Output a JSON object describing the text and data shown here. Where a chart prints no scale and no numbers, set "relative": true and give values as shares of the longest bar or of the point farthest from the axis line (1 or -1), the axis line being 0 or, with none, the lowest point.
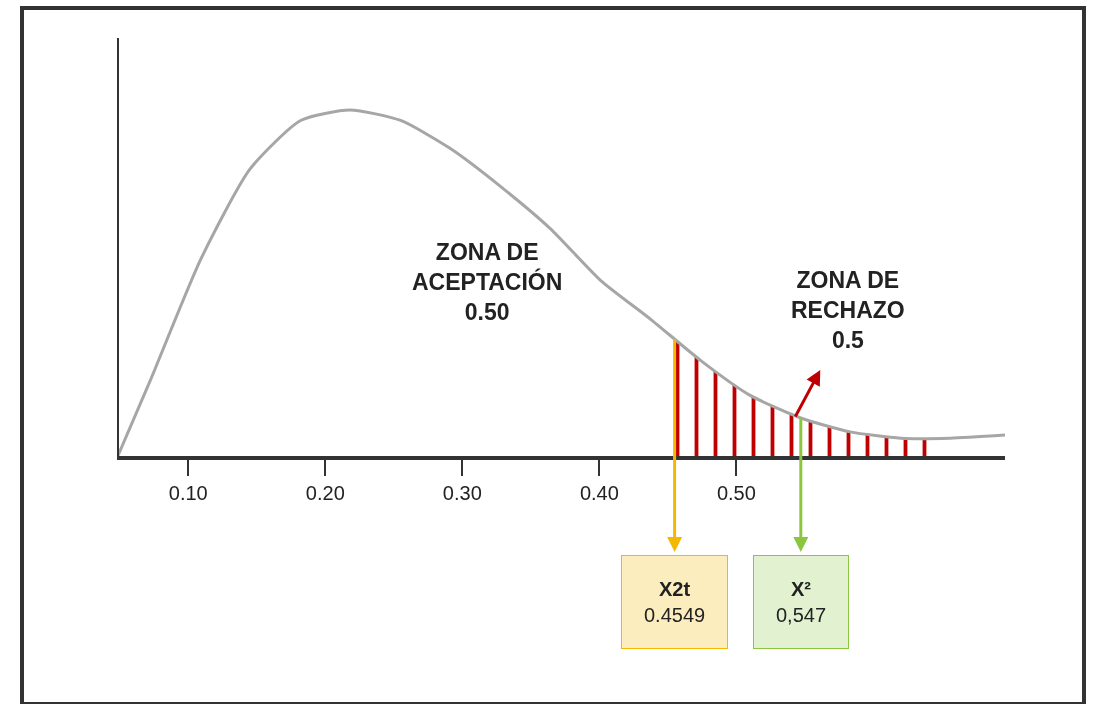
{
  "chart_data": {
    "type": "line",
    "relative": true,
    "x": [
      0.048,
      0.072,
      0.109,
      0.145,
      0.182,
      0.218,
      0.255,
      0.291,
      0.328,
      0.364,
      0.401,
      0.437,
      0.474,
      0.51,
      0.547,
      0.583,
      0.62,
      0.656,
      0.696
    ],
    "series": [
      {
        "color": "#a6a6a6",
        "values": [
          0,
          0.22,
          0.57,
          0.83,
          0.97,
          1,
          0.97,
          0.89,
          0.78,
          0.66,
          0.51,
          0.4,
          0.28,
          0.18,
          0.115,
          0.075,
          0.057,
          0.057,
          0.066
        ]
      },
      {
        "type": "area",
        "color": "#c00000",
        "x": [
          0.4549,
          0.474,
          0.51,
          0.547,
          0.583,
          0.62,
          0.642
        ],
        "values": [
          0.34,
          0.28,
          0.18,
          0.115,
          0.075,
          0.057,
          0.057
        ]
      }
    ],
    "xlim": [
      0.048,
      0.696
    ],
    "xticks": [
      {
        "value": 0.1,
        "label": "0.10"
      },
      {
        "value": 0.2,
        "label": "0.20"
      },
      {
        "value": 0.3,
        "label": "0.30"
      },
      {
        "value": 0.4,
        "label": "0.40"
      },
      {
        "value": 0.5,
        "label": "0.50"
      }
    ],
    "tick_labels": "x",
    "grid": false,
    "marker": "none",
    "line_style": "solid",
    "ref_lines": [
      {
        "axis": "x",
        "value": 0.4549,
        "label": "X2t\n0.4549",
        "color": "#f5b800"
      },
      {
        "axis": "x",
        "value": 0.547,
        "label": "X²\n0,547",
        "color": "#8cc63f"
      }
    ],
    "annotations": [
      "ZONA DE\nACEPTACIÓN\n0.50",
      "ZONA DE\nRECHAZO\n0.5"
    ]
  }
}
